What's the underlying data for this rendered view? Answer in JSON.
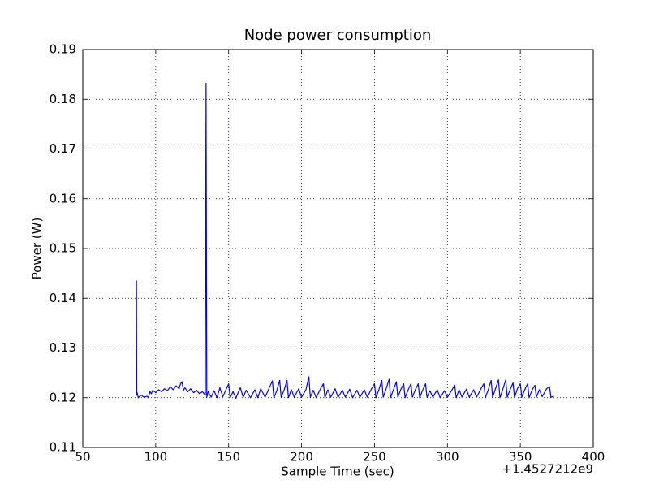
{
  "chart_data": {
    "type": "line",
    "title": "Node power consumption",
    "x_label": "Sample Time (sec)",
    "y_label": "Power (W)",
    "x_offset_label": "+1.4527212e9",
    "color": "#0000ff",
    "grid": true,
    "xlim": [
      50,
      400
    ],
    "xticks": [
      50,
      100,
      150,
      200,
      250,
      300,
      350,
      400
    ],
    "ylim": [
      0.11,
      0.19
    ],
    "yticks": [
      0.11,
      0.12,
      0.13,
      0.14,
      0.15,
      0.16,
      0.17,
      0.18,
      0.19
    ],
    "x": [
      86.5,
      86.8,
      87.0,
      87.3,
      88,
      90,
      92,
      94,
      95,
      96,
      97,
      98,
      100,
      102,
      104,
      106,
      108,
      110,
      112,
      114,
      116,
      117,
      118,
      119,
      120,
      122,
      124,
      126,
      128,
      130,
      132,
      134,
      134.5,
      135,
      136,
      138,
      140,
      142,
      144,
      146,
      148,
      150,
      151,
      153,
      155,
      157,
      158,
      160,
      162,
      165,
      168,
      170,
      172,
      175,
      177,
      180,
      181,
      183,
      185,
      186,
      188,
      190,
      191,
      193,
      195,
      198,
      200,
      203,
      205,
      206,
      208,
      210,
      213,
      215,
      216,
      218,
      220,
      223,
      225,
      228,
      230,
      233,
      235,
      238,
      240,
      243,
      245,
      248,
      250,
      251,
      253,
      255,
      256,
      258,
      260,
      261,
      263,
      265,
      266,
      268,
      270,
      271,
      273,
      275,
      276,
      278,
      280,
      281,
      283,
      285,
      286,
      288,
      290,
      293,
      295,
      298,
      300,
      303,
      305,
      306,
      308,
      310,
      313,
      315,
      318,
      320,
      323,
      325,
      326,
      328,
      330,
      331,
      333,
      335,
      336,
      338,
      340,
      341,
      343,
      345,
      346,
      348,
      350,
      351,
      353,
      355,
      356,
      358,
      360,
      361,
      363,
      365,
      368,
      370,
      371,
      373
    ],
    "values": [
      0.143,
      0.1435,
      0.1205,
      0.121,
      0.12,
      0.1205,
      0.1201,
      0.1203,
      0.12,
      0.1212,
      0.1208,
      0.1215,
      0.121,
      0.1216,
      0.1212,
      0.1218,
      0.1214,
      0.1222,
      0.1216,
      0.1224,
      0.1218,
      0.1228,
      0.1232,
      0.1215,
      0.122,
      0.1212,
      0.1218,
      0.121,
      0.1215,
      0.1208,
      0.1212,
      0.1205,
      0.1832,
      0.1201,
      0.1212,
      0.1201,
      0.1214,
      0.12,
      0.122,
      0.1202,
      0.1215,
      0.1228,
      0.12,
      0.1212,
      0.1199,
      0.1214,
      0.122,
      0.1201,
      0.1215,
      0.12,
      0.1216,
      0.12,
      0.1218,
      0.1201,
      0.1214,
      0.1234,
      0.12,
      0.1214,
      0.1235,
      0.1201,
      0.1215,
      0.1235,
      0.12,
      0.1216,
      0.1201,
      0.1218,
      0.1201,
      0.1216,
      0.1242,
      0.1201,
      0.1215,
      0.12,
      0.1218,
      0.1228,
      0.12,
      0.1216,
      0.1201,
      0.1218,
      0.1201,
      0.1215,
      0.1201,
      0.1217,
      0.12,
      0.1215,
      0.1201,
      0.1216,
      0.1201,
      0.1218,
      0.1228,
      0.12,
      0.1216,
      0.1235,
      0.1201,
      0.1218,
      0.1237,
      0.12,
      0.1216,
      0.1232,
      0.1201,
      0.1216,
      0.1228,
      0.12,
      0.1215,
      0.1228,
      0.1201,
      0.1216,
      0.1228,
      0.12,
      0.1215,
      0.1228,
      0.1201,
      0.1214,
      0.1201,
      0.1216,
      0.12,
      0.1214,
      0.1201,
      0.1215,
      0.1225,
      0.12,
      0.1216,
      0.1201,
      0.1217,
      0.1201,
      0.1216,
      0.1201,
      0.1218,
      0.1228,
      0.12,
      0.1216,
      0.1235,
      0.1201,
      0.1218,
      0.1236,
      0.12,
      0.1217,
      0.1236,
      0.1201,
      0.1216,
      0.123,
      0.12,
      0.1218,
      0.1228,
      0.1201,
      0.1216,
      0.1228,
      0.12,
      0.1215,
      0.1225,
      0.1201,
      0.1216,
      0.1202,
      0.1218,
      0.1222,
      0.1201,
      0.1203
    ]
  }
}
